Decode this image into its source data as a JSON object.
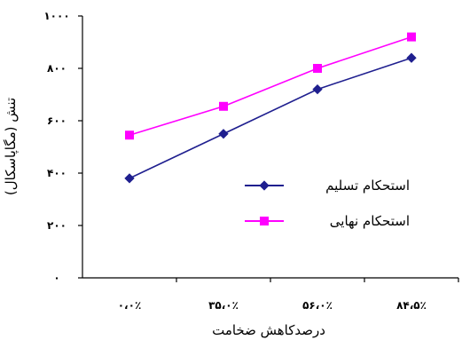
{
  "chart_data": {
    "type": "line",
    "title": "",
    "xlabel": "درصدکاهش ضخامت",
    "ylabel": "تنش (مگاپاسکال)",
    "categories": [
      "۰،۰٪",
      "۳۵،۰٪",
      "۵۶،۰٪",
      "۸۴،۵٪"
    ],
    "ylim": [
      0,
      1000
    ],
    "yticks": [
      0,
      200,
      400,
      600,
      800,
      1000
    ],
    "ytick_labels": [
      "۰",
      "۲۰۰",
      "۴۰۰",
      "۶۰۰",
      "۸۰۰",
      "۱۰۰۰"
    ],
    "grid": false,
    "legend_position": "right-middle",
    "series": [
      {
        "name": "استحکام تسلیم",
        "color": "#1f1f8f",
        "marker": "diamond",
        "values": [
          380,
          550,
          720,
          840
        ]
      },
      {
        "name": "استحکام نهایی",
        "color": "#ff00ff",
        "marker": "square",
        "values": [
          545,
          655,
          800,
          920
        ]
      }
    ]
  }
}
